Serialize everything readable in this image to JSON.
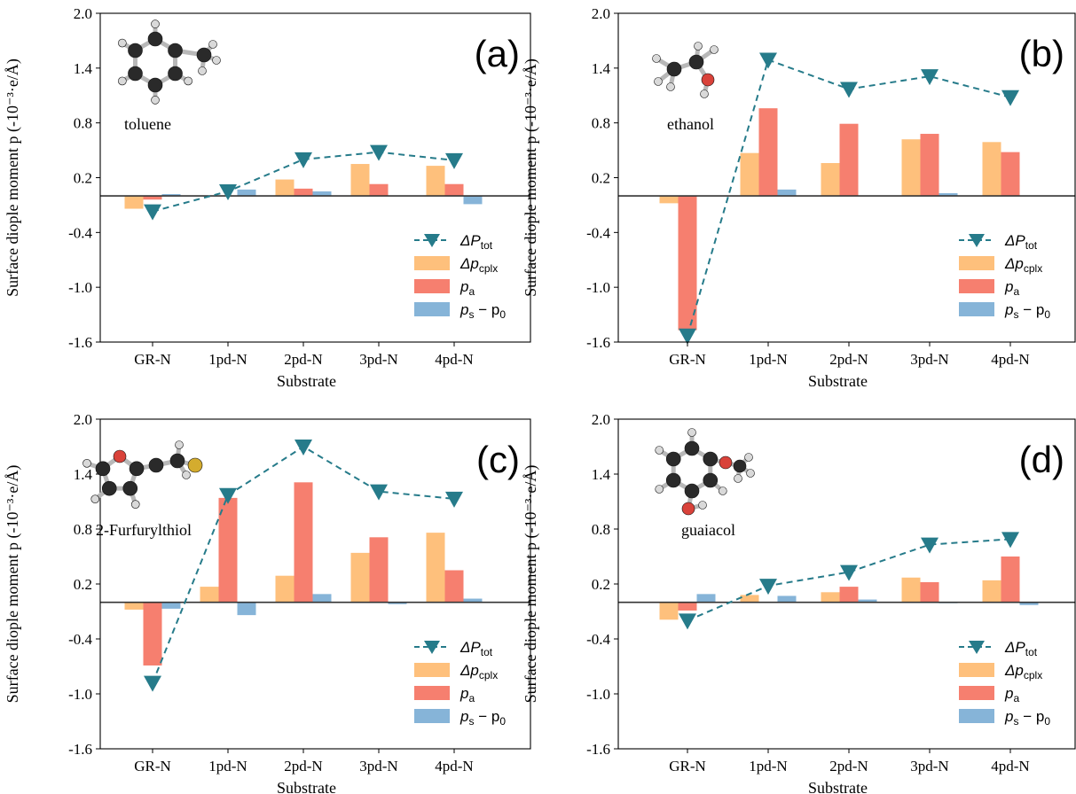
{
  "colors": {
    "dP_tot": "#267b8a",
    "dp_cplx": "#fec07c",
    "p_a": "#f67f6f",
    "ps_p0": "#86b4d8",
    "atom_C": "#2a2a2a",
    "atom_H": "#d9d9d9",
    "atom_O": "#d9423a",
    "atom_S": "#d4ac2e"
  },
  "legend": {
    "dP_tot": {
      "main": "ΔP",
      "sub": "tot"
    },
    "dp_cplx": {
      "main": "Δp",
      "sub": "cplx"
    },
    "p_a": {
      "main": "p",
      "sub": "a"
    },
    "ps_p0": {
      "main": "p",
      "sub": "s",
      "mid": " − p",
      "sub2": "0"
    }
  },
  "axis_text": {
    "xlabel": "Substrate",
    "ylabel": "Surface diople moment p (-10⁻³·e/Å)"
  },
  "chart_data": [
    {
      "type": "bar",
      "panel_label": "(a)",
      "molecule": "toluene",
      "molecule_icon": "toluene-molecule-icon",
      "categories": [
        "GR-N",
        "1pd-N",
        "2pd-N",
        "3pd-N",
        "4pd-N"
      ],
      "ylim": [
        -1.6,
        2.0
      ],
      "yticks": [
        "2.0",
        "1.4",
        "0.8",
        "0.2",
        "-0.4",
        "-1.0",
        "-1.6"
      ],
      "yticks_values": [
        2.0,
        1.4,
        0.8,
        0.2,
        -0.4,
        -1.0,
        -1.6
      ],
      "xlabel": "Substrate",
      "ylabel": "Surface diople moment p (-10⁻³·e/Å)",
      "legend_position": "lower-right",
      "series": [
        {
          "name": "Δp_cplx",
          "kind": "bar",
          "values": [
            -0.14,
            0.0,
            0.18,
            0.35,
            0.33
          ]
        },
        {
          "name": "p_a",
          "kind": "bar",
          "values": [
            -0.04,
            0.0,
            0.08,
            0.13,
            0.13
          ]
        },
        {
          "name": "p_s − p_0",
          "kind": "bar",
          "values": [
            0.02,
            0.07,
            0.05,
            0.0,
            -0.09
          ]
        },
        {
          "name": "ΔP_tot",
          "kind": "line",
          "values": [
            -0.17,
            0.05,
            0.4,
            0.48,
            0.39
          ]
        }
      ]
    },
    {
      "type": "bar",
      "panel_label": "(b)",
      "molecule": "ethanol",
      "molecule_icon": "ethanol-molecule-icon",
      "categories": [
        "GR-N",
        "1pd-N",
        "2pd-N",
        "3pd-N",
        "4pd-N"
      ],
      "ylim": [
        -1.6,
        2.0
      ],
      "yticks": [
        "2.0",
        "1.4",
        "0.8",
        "0.2",
        "-0.4",
        "-1.0",
        "-1.6"
      ],
      "yticks_values": [
        2.0,
        1.4,
        0.8,
        0.2,
        -0.4,
        -1.0,
        -1.6
      ],
      "xlabel": "Substrate",
      "ylabel": "Surface diople moment p (-10⁻³·e/Å)",
      "legend_position": "lower-right",
      "series": [
        {
          "name": "Δp_cplx",
          "kind": "bar",
          "values": [
            -0.08,
            0.47,
            0.36,
            0.62,
            0.59
          ]
        },
        {
          "name": "p_a",
          "kind": "bar",
          "values": [
            -1.47,
            0.96,
            0.79,
            0.68,
            0.48
          ]
        },
        {
          "name": "p_s − p_0",
          "kind": "bar",
          "values": [
            0.0,
            0.07,
            0.0,
            0.03,
            0.0
          ]
        },
        {
          "name": "ΔP_tot",
          "kind": "line",
          "values": [
            -1.53,
            1.49,
            1.17,
            1.31,
            1.08
          ]
        }
      ]
    },
    {
      "type": "bar",
      "panel_label": "(c)",
      "molecule": "2-Furfurylthiol",
      "molecule_icon": "furfurylthiol-molecule-icon",
      "categories": [
        "GR-N",
        "1pd-N",
        "2pd-N",
        "3pd-N",
        "4pd-N"
      ],
      "ylim": [
        -1.6,
        2.0
      ],
      "yticks": [
        "2.0",
        "1.4",
        "0.8",
        "0.2",
        "-0.4",
        "-1.0",
        "-1.6"
      ],
      "yticks_values": [
        2.0,
        1.4,
        0.8,
        0.2,
        -0.4,
        -1.0,
        -1.6
      ],
      "xlabel": "Substrate",
      "ylabel": "Surface diople moment p (-10⁻³·e/Å)",
      "legend_position": "lower-right",
      "series": [
        {
          "name": "Δp_cplx",
          "kind": "bar",
          "values": [
            -0.08,
            0.17,
            0.29,
            0.54,
            0.76
          ]
        },
        {
          "name": "p_a",
          "kind": "bar",
          "values": [
            -0.69,
            1.14,
            1.31,
            0.71,
            0.35
          ]
        },
        {
          "name": "p_s − p_0",
          "kind": "bar",
          "values": [
            -0.07,
            -0.14,
            0.09,
            -0.02,
            0.04
          ]
        },
        {
          "name": "ΔP_tot",
          "kind": "line",
          "values": [
            -0.88,
            1.17,
            1.7,
            1.21,
            1.13
          ]
        }
      ]
    },
    {
      "type": "bar",
      "panel_label": "(d)",
      "molecule": "guaiacol",
      "molecule_icon": "guaiacol-molecule-icon",
      "categories": [
        "GR-N",
        "1pd-N",
        "2pd-N",
        "3pd-N",
        "4pd-N"
      ],
      "ylim": [
        -1.6,
        2.0
      ],
      "yticks": [
        "2.0",
        "1.4",
        "0.8",
        "0.2",
        "-0.4",
        "-1.0",
        "-1.6"
      ],
      "yticks_values": [
        2.0,
        1.4,
        0.8,
        0.2,
        -0.4,
        -1.0,
        -1.6
      ],
      "xlabel": "Substrate",
      "ylabel": "Surface diople moment p (-10⁻³·e/Å)",
      "legend_position": "lower-right",
      "series": [
        {
          "name": "Δp_cplx",
          "kind": "bar",
          "values": [
            -0.19,
            0.08,
            0.11,
            0.27,
            0.24
          ]
        },
        {
          "name": "p_a",
          "kind": "bar",
          "values": [
            -0.09,
            0.0,
            0.17,
            0.22,
            0.5
          ]
        },
        {
          "name": "p_s − p_0",
          "kind": "bar",
          "values": [
            0.09,
            0.07,
            0.03,
            -0.01,
            -0.03
          ]
        },
        {
          "name": "ΔP_tot",
          "kind": "line",
          "values": [
            -0.2,
            0.18,
            0.33,
            0.63,
            0.69
          ]
        }
      ]
    }
  ]
}
